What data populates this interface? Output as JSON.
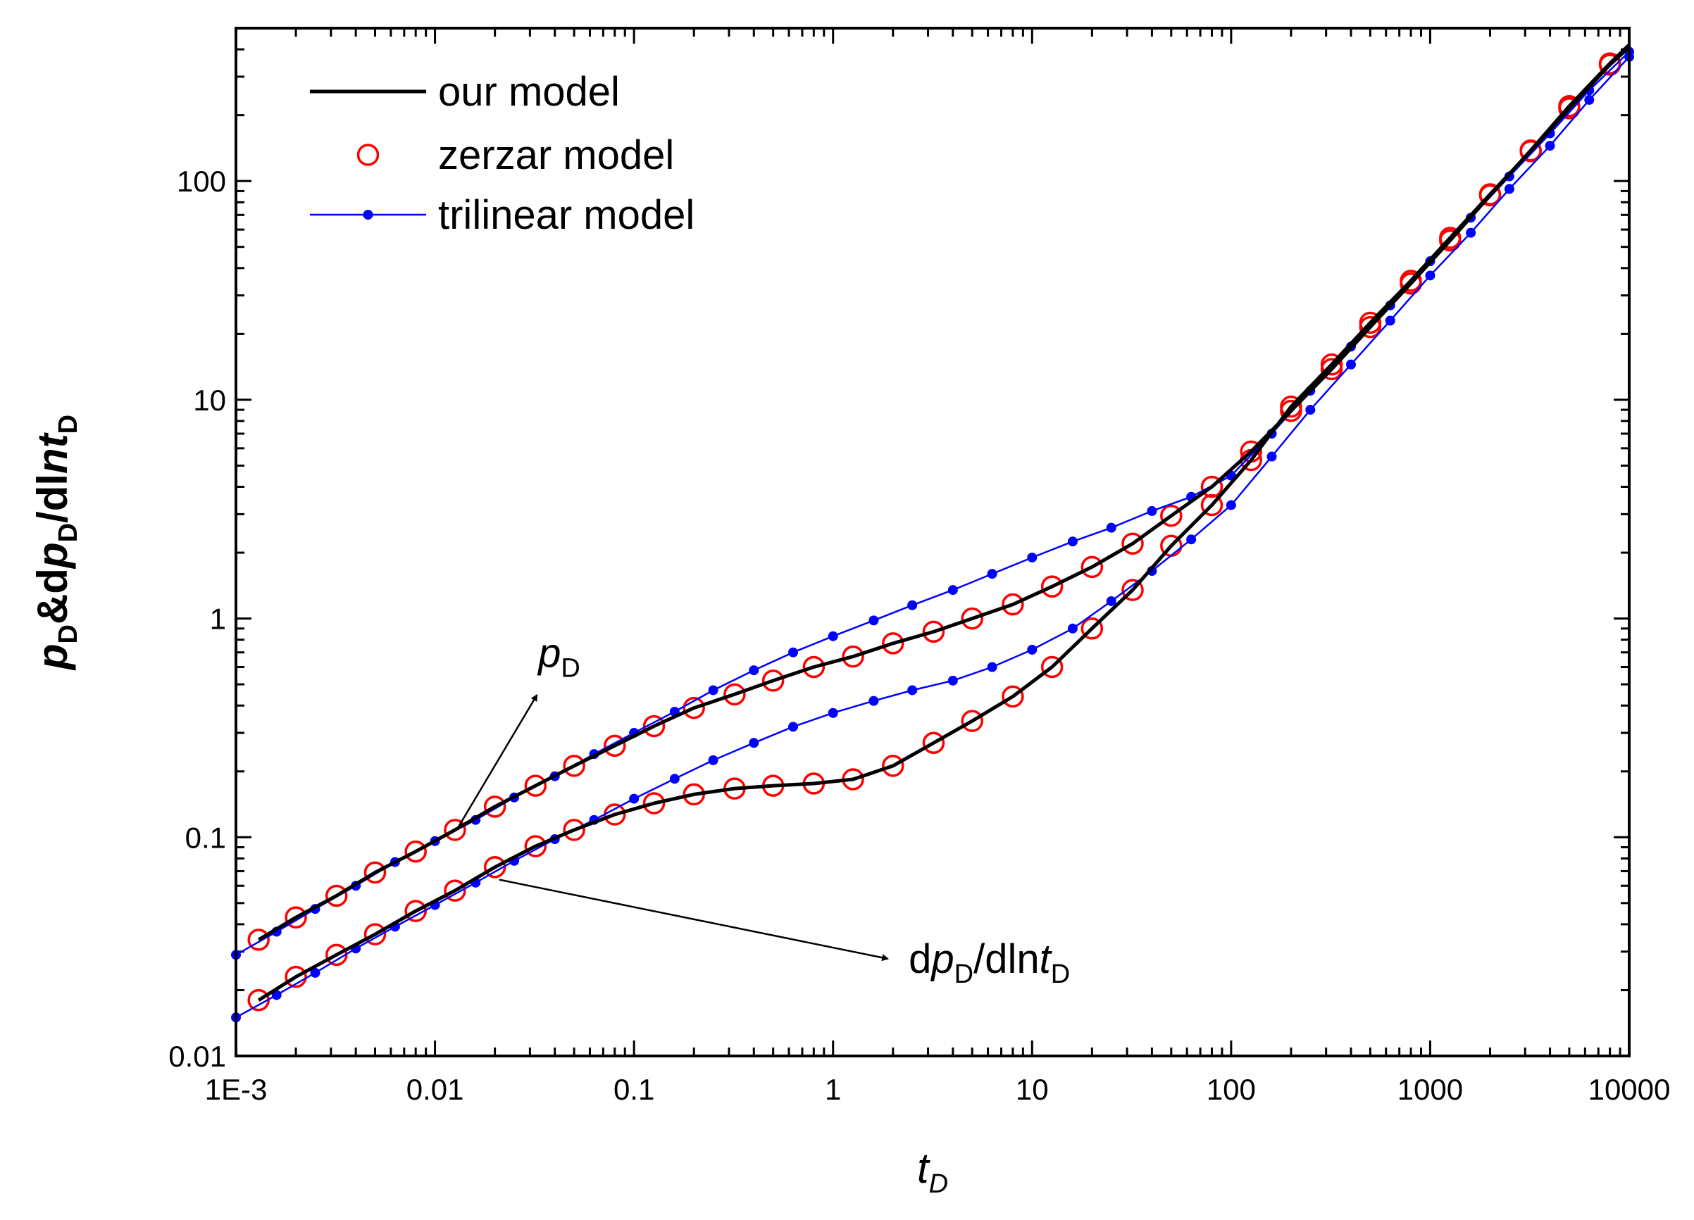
{
  "chart_data": {
    "type": "line",
    "x_scale": "log",
    "y_scale": "log",
    "xlim": [
      0.001,
      10000
    ],
    "ylim": [
      0.01,
      500
    ],
    "x_ticks": [
      {
        "value": 0.001,
        "label": "1E-3"
      },
      {
        "value": 0.01,
        "label": "0.01"
      },
      {
        "value": 0.1,
        "label": "0.1"
      },
      {
        "value": 1,
        "label": "1"
      },
      {
        "value": 10,
        "label": "10"
      },
      {
        "value": 100,
        "label": "100"
      },
      {
        "value": 1000,
        "label": "1000"
      },
      {
        "value": 10000,
        "label": "10000"
      }
    ],
    "y_ticks": [
      {
        "value": 0.01,
        "label": "0.01"
      },
      {
        "value": 0.1,
        "label": "0.1"
      },
      {
        "value": 1,
        "label": "1"
      },
      {
        "value": 10,
        "label": "10"
      },
      {
        "value": 100,
        "label": "100"
      }
    ],
    "xlabel": {
      "main": "t",
      "sub": "D"
    },
    "ylabel": {
      "parts": [
        {
          "t": "p",
          "italic": true,
          "sub": false
        },
        {
          "t": "D",
          "italic": false,
          "sub": true
        },
        {
          "t": "&d",
          "italic": false,
          "sub": false
        },
        {
          "t": "p",
          "italic": true,
          "sub": false
        },
        {
          "t": "D",
          "italic": false,
          "sub": true
        },
        {
          "t": "/dl",
          "italic": false,
          "sub": false
        },
        {
          "t": "nt",
          "italic": true,
          "sub": false
        },
        {
          "t": "D",
          "italic": false,
          "sub": true
        }
      ]
    },
    "legend": {
      "position": "top-left",
      "entries": [
        {
          "label": "our model",
          "series": "our_model"
        },
        {
          "label": "zerzar model",
          "series": "zerzar_model"
        },
        {
          "label": "trilinear model",
          "series": "trilinear_model"
        }
      ]
    },
    "series": [
      {
        "name": "our model",
        "key": "our_model",
        "curve": "pD",
        "color": "#000000",
        "style": "line",
        "x": [
          0.0013,
          0.002,
          0.0032,
          0.005,
          0.008,
          0.0126,
          0.02,
          0.032,
          0.05,
          0.08,
          0.126,
          0.2,
          0.32,
          0.5,
          0.8,
          1.26,
          2,
          3.2,
          5,
          8,
          12.6,
          20,
          32,
          50,
          80,
          126,
          200,
          320,
          500,
          800,
          1260,
          2000,
          3200,
          5000,
          8000,
          10000
        ],
        "y": [
          0.034,
          0.043,
          0.054,
          0.069,
          0.086,
          0.108,
          0.138,
          0.172,
          0.212,
          0.262,
          0.322,
          0.39,
          0.45,
          0.52,
          0.6,
          0.67,
          0.77,
          0.87,
          1.0,
          1.16,
          1.4,
          1.72,
          2.2,
          2.95,
          4.0,
          5.8,
          8.9,
          13.8,
          21.5,
          34.0,
          53.5,
          86.0,
          138.0,
          220.0,
          345.0,
          420.0
        ]
      },
      {
        "name": "our model",
        "key": "our_model",
        "curve": "dpD",
        "color": "#000000",
        "style": "line",
        "x": [
          0.0013,
          0.002,
          0.0032,
          0.005,
          0.008,
          0.0126,
          0.02,
          0.032,
          0.05,
          0.08,
          0.126,
          0.2,
          0.32,
          0.5,
          0.8,
          1.26,
          2,
          3.2,
          5,
          8,
          12.6,
          20,
          32,
          50,
          80,
          126,
          200,
          320,
          500,
          800,
          1260,
          2000,
          3200,
          5000,
          8000,
          10000
        ],
        "y": [
          0.018,
          0.023,
          0.029,
          0.036,
          0.046,
          0.057,
          0.073,
          0.091,
          0.108,
          0.127,
          0.143,
          0.157,
          0.167,
          0.172,
          0.176,
          0.184,
          0.212,
          0.27,
          0.34,
          0.44,
          0.6,
          0.9,
          1.35,
          2.15,
          3.3,
          5.3,
          9.3,
          14.5,
          22.5,
          35.0,
          55.0,
          87.0,
          137.0,
          215.0,
          340.0,
          410.0
        ]
      },
      {
        "name": "zerzar model",
        "key": "zerzar_model",
        "curve": "pD",
        "color": "#ff0000",
        "style": "markers",
        "x": [
          0.0013,
          0.002,
          0.0032,
          0.005,
          0.008,
          0.0126,
          0.02,
          0.032,
          0.05,
          0.08,
          0.126,
          0.2,
          0.32,
          0.5,
          0.8,
          1.26,
          2,
          3.2,
          5,
          8,
          12.6,
          20,
          32,
          50,
          80,
          126,
          200,
          320,
          500,
          800,
          1260,
          2000,
          3200,
          5000,
          8000
        ],
        "y": [
          0.034,
          0.043,
          0.054,
          0.069,
          0.086,
          0.108,
          0.138,
          0.172,
          0.212,
          0.262,
          0.322,
          0.39,
          0.45,
          0.52,
          0.6,
          0.67,
          0.77,
          0.87,
          1.0,
          1.16,
          1.4,
          1.72,
          2.2,
          2.95,
          4.0,
          5.8,
          8.9,
          13.8,
          21.5,
          34.0,
          53.5,
          86.0,
          138.0,
          220.0,
          345.0
        ]
      },
      {
        "name": "zerzar model",
        "key": "zerzar_model",
        "curve": "dpD",
        "color": "#ff0000",
        "style": "markers",
        "x": [
          0.0013,
          0.002,
          0.0032,
          0.005,
          0.008,
          0.0126,
          0.02,
          0.032,
          0.05,
          0.08,
          0.126,
          0.2,
          0.32,
          0.5,
          0.8,
          1.26,
          2,
          3.2,
          5,
          8,
          12.6,
          20,
          32,
          50,
          80,
          126,
          200,
          320,
          500,
          800,
          1260,
          2000,
          3200,
          5000,
          8000
        ],
        "y": [
          0.018,
          0.023,
          0.029,
          0.036,
          0.046,
          0.057,
          0.073,
          0.091,
          0.108,
          0.127,
          0.143,
          0.157,
          0.167,
          0.172,
          0.176,
          0.184,
          0.212,
          0.27,
          0.34,
          0.44,
          0.6,
          0.9,
          1.35,
          2.15,
          3.3,
          5.3,
          9.3,
          14.5,
          22.5,
          35.0,
          55.0,
          87.0,
          137.0,
          215.0,
          340.0
        ]
      },
      {
        "name": "trilinear model",
        "key": "trilinear_model",
        "curve": "pD",
        "color": "#0000ff",
        "style": "line+dots",
        "x": [
          0.001,
          0.0016,
          0.0025,
          0.004,
          0.0063,
          0.01,
          0.016,
          0.025,
          0.04,
          0.063,
          0.1,
          0.16,
          0.25,
          0.4,
          0.63,
          1,
          1.6,
          2.5,
          4,
          6.3,
          10,
          16,
          25,
          40,
          63,
          100,
          160,
          250,
          400,
          630,
          1000,
          1600,
          2500,
          4000,
          6300,
          10000
        ],
        "y": [
          0.029,
          0.037,
          0.047,
          0.06,
          0.077,
          0.096,
          0.12,
          0.152,
          0.19,
          0.24,
          0.3,
          0.375,
          0.47,
          0.58,
          0.7,
          0.83,
          0.98,
          1.15,
          1.35,
          1.6,
          1.9,
          2.25,
          2.6,
          3.1,
          3.6,
          4.5,
          7.0,
          11.0,
          17.5,
          27.0,
          43.0,
          68.0,
          105.0,
          165.0,
          260.0,
          390.0
        ]
      },
      {
        "name": "trilinear model",
        "key": "trilinear_model",
        "curve": "dpD",
        "color": "#0000ff",
        "style": "line+dots",
        "x": [
          0.001,
          0.0016,
          0.0025,
          0.004,
          0.0063,
          0.01,
          0.016,
          0.025,
          0.04,
          0.063,
          0.1,
          0.16,
          0.25,
          0.4,
          0.63,
          1,
          1.6,
          2.5,
          4,
          6.3,
          10,
          16,
          25,
          40,
          63,
          100,
          160,
          250,
          400,
          630,
          1000,
          1600,
          2500,
          4000,
          6300,
          10000
        ],
        "y": [
          0.015,
          0.019,
          0.024,
          0.031,
          0.039,
          0.049,
          0.062,
          0.078,
          0.098,
          0.12,
          0.15,
          0.185,
          0.225,
          0.27,
          0.32,
          0.37,
          0.42,
          0.47,
          0.52,
          0.6,
          0.72,
          0.9,
          1.2,
          1.65,
          2.3,
          3.3,
          5.5,
          9.0,
          14.5,
          23.0,
          37.0,
          58.0,
          92.0,
          145.0,
          235.0,
          370.0
        ]
      }
    ],
    "annotations": [
      {
        "key": "pD",
        "main": "p",
        "sub": "D",
        "italic": true,
        "target": {
          "x": 0.013,
          "y": 0.11
        },
        "text_at": {
          "x": 0.033,
          "y": 0.6
        }
      },
      {
        "key": "dpD",
        "parts": [
          {
            "t": "d",
            "italic": false,
            "sub": false
          },
          {
            "t": "p",
            "italic": true,
            "sub": false
          },
          {
            "t": "D",
            "italic": false,
            "sub": true
          },
          {
            "t": "/dln",
            "italic": false,
            "sub": false
          },
          {
            "t": "t",
            "italic": true,
            "sub": false
          },
          {
            "t": "D",
            "italic": false,
            "sub": true
          }
        ],
        "target": {
          "x": 0.021,
          "y": 0.064
        },
        "text_at": {
          "x": 2.4,
          "y": 0.024
        }
      }
    ]
  }
}
